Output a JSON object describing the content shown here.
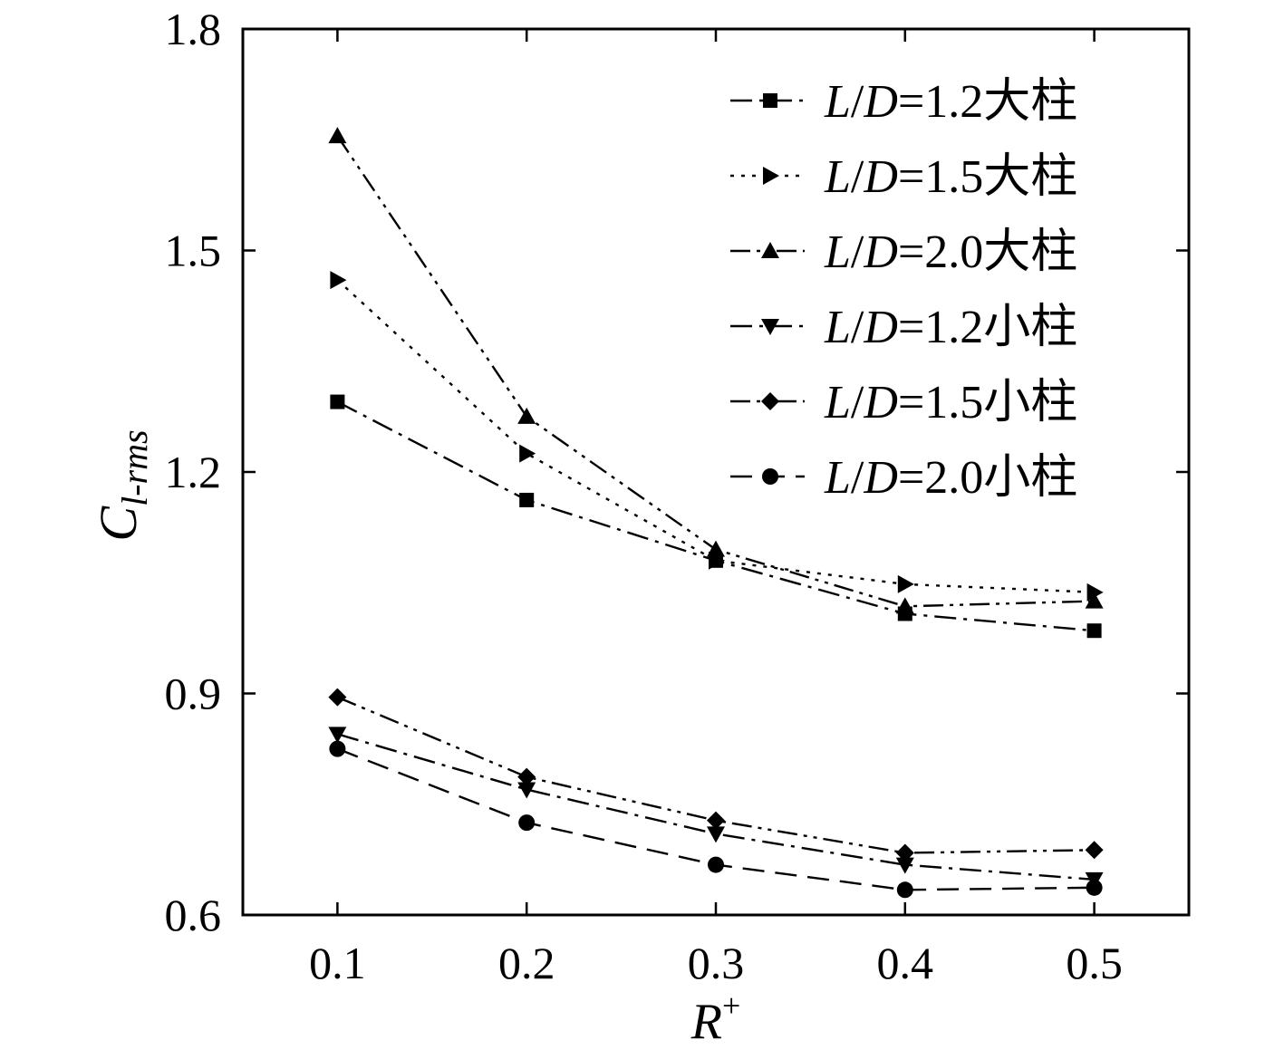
{
  "chart_data": {
    "type": "line",
    "xlabel": "R",
    "xlabel_sup": "+",
    "ylabel": "C",
    "ylabel_sub": "l-rms",
    "xlim": [
      0.05,
      0.55
    ],
    "ylim": [
      0.6,
      1.8
    ],
    "x": [
      0.1,
      0.2,
      0.3,
      0.4,
      0.5
    ],
    "xticks": [
      0.1,
      0.2,
      0.3,
      0.4,
      0.5
    ],
    "xtick_labels": [
      "0.1",
      "0.2",
      "0.3",
      "0.4",
      "0.5"
    ],
    "yticks": [
      0.6,
      0.9,
      1.2,
      1.5,
      1.8
    ],
    "ytick_labels": [
      "0.6",
      "0.9",
      "1.2",
      "1.5",
      "1.8"
    ],
    "grid": false,
    "legend_position": "top-right",
    "series": [
      {
        "name": "L/D=1.2大柱",
        "name_parts": [
          "L",
          "/",
          "D",
          "=1.2大柱"
        ],
        "marker": "square",
        "linestyle": "dash-dot",
        "values": [
          1.295,
          1.162,
          1.08,
          1.008,
          0.985
        ]
      },
      {
        "name": "L/D=1.5大柱",
        "name_parts": [
          "L",
          "/",
          "D",
          "=1.5大柱"
        ],
        "marker": "triangle-right",
        "linestyle": "dotted",
        "values": [
          1.46,
          1.225,
          1.08,
          1.048,
          1.037
        ]
      },
      {
        "name": "L/D=2.0大柱",
        "name_parts": [
          "L",
          "/",
          "D",
          "=2.0大柱"
        ],
        "marker": "triangle-up",
        "linestyle": "dash-dot-dot",
        "values": [
          1.655,
          1.275,
          1.095,
          1.018,
          1.025
        ]
      },
      {
        "name": "L/D=1.2小柱",
        "name_parts": [
          "L",
          "/",
          "D",
          "=1.2小柱"
        ],
        "marker": "triangle-down",
        "linestyle": "dash-dot",
        "values": [
          0.845,
          0.77,
          0.71,
          0.668,
          0.648
        ]
      },
      {
        "name": "L/D=1.5小柱",
        "name_parts": [
          "L",
          "/",
          "D",
          "=1.5小柱"
        ],
        "marker": "diamond",
        "linestyle": "dash-dot-dot",
        "values": [
          0.895,
          0.787,
          0.728,
          0.684,
          0.688
        ]
      },
      {
        "name": "L/D=2.0小柱",
        "name_parts": [
          "L",
          "/",
          "D",
          "=2.0小柱"
        ],
        "marker": "circle",
        "linestyle": "dashed",
        "values": [
          0.825,
          0.725,
          0.668,
          0.634,
          0.637
        ]
      }
    ]
  },
  "colors": {
    "ink": "#000000",
    "background": "#ffffff"
  }
}
